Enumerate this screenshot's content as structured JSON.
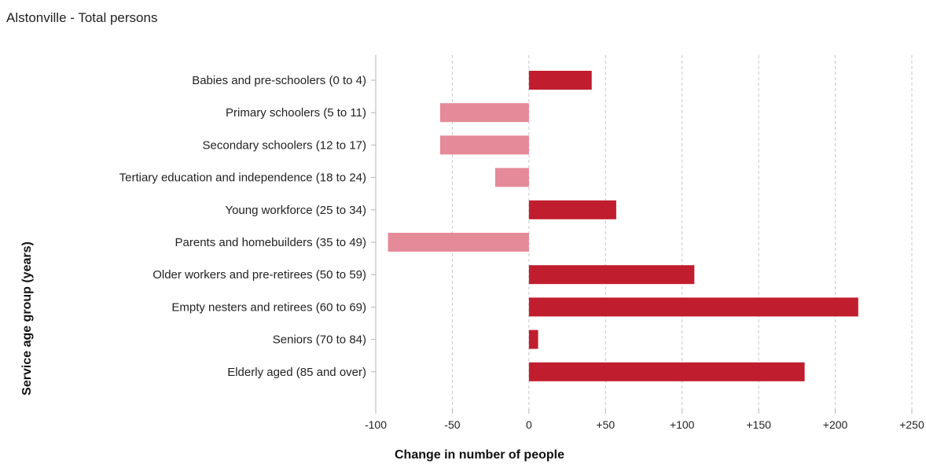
{
  "chart_data": {
    "type": "bar",
    "orientation": "horizontal",
    "title": "Alstonville - Total persons",
    "xlabel": "Change in number of people",
    "ylabel": "Service age group (years)",
    "xlim": [
      -100,
      250
    ],
    "x_ticks": [
      -100,
      -50,
      0,
      50,
      100,
      150,
      200,
      250
    ],
    "x_tick_labels": [
      "-100",
      "-50",
      "0",
      "+50",
      "+100",
      "+150",
      "+200",
      "+250"
    ],
    "grid": "vertical dashed",
    "legend": "none",
    "categories": [
      "Babies and pre-schoolers (0 to 4)",
      "Primary schoolers (5 to 11)",
      "Secondary schoolers (12 to 17)",
      "Tertiary education and independence (18 to 24)",
      "Young workforce (25 to 34)",
      "Parents and homebuilders (35 to 49)",
      "Older workers and pre-retirees (50 to 59)",
      "Empty nesters and retirees (60 to 69)",
      "Seniors (70 to 84)",
      "Elderly aged (85 and over)"
    ],
    "values": [
      41,
      -58,
      -58,
      -22,
      57,
      -92,
      108,
      215,
      6,
      180
    ],
    "colors": {
      "positive": "#c01e2e",
      "negative": "#e48a98",
      "grid": "#c8c8c8",
      "axis": "#b5b5b5"
    }
  }
}
